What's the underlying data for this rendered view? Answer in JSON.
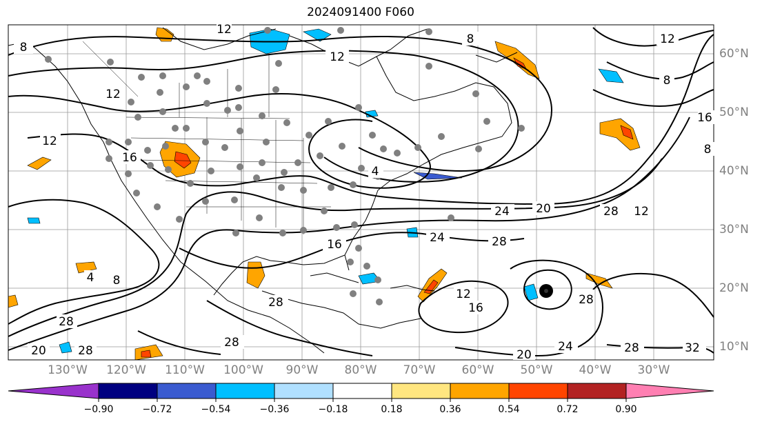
{
  "title": "2024091400 F060",
  "map": {
    "lon_labels": [
      "130°W",
      "120°W",
      "110°W",
      "100°W",
      "90°W",
      "80°W",
      "70°W",
      "60°W",
      "50°W",
      "40°W",
      "30°W"
    ],
    "lat_labels": [
      "60°N",
      "50°N",
      "40°N",
      "30°N",
      "20°N",
      "10°N"
    ],
    "contour_labels": [
      "8",
      "12",
      "8",
      "8",
      "12",
      "8",
      "12",
      "16",
      "12",
      "16",
      "12",
      "4",
      "24",
      "20",
      "28",
      "12",
      "24",
      "28",
      "16",
      "28",
      "4",
      "8",
      "28",
      "28",
      "20",
      "28",
      "24",
      "28",
      "28",
      "32",
      "20",
      "12",
      "16"
    ],
    "storm_marker": "tropical-cyclone-marker"
  },
  "colorbar": {
    "ticks": [
      "−0.90",
      "−0.72",
      "−0.54",
      "−0.36",
      "−0.18",
      "0.18",
      "0.36",
      "0.54",
      "0.72",
      "0.90"
    ],
    "colors": [
      "#9932cc",
      "#000080",
      "#3a5bd0",
      "#00bfff",
      "#b0e0ff",
      "#ffffff",
      "#ffe680",
      "#ffa500",
      "#ff4500",
      "#b22222",
      "#ff7fb2"
    ]
  }
}
